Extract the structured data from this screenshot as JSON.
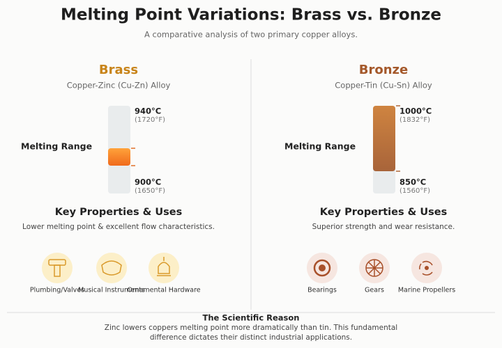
{
  "header": {
    "title": "Melting Point Variations: Brass vs. Bronze",
    "subtitle": "A comparative analysis of two primary copper alloys."
  },
  "alloys": [
    {
      "name": "Brass",
      "description": "Copper-Zinc (Cu-Zn) Alloy",
      "range_label": "Melting Range",
      "high": {
        "celsius": "940°C",
        "fahrenheit": "(1720°F)"
      },
      "low": {
        "celsius": "900°C",
        "fahrenheit": "(1650°F)"
      },
      "properties_title": "Key Properties & Uses",
      "properties_text": "Lower melting point & excellent flow characteristics.",
      "uses": [
        "Plumbing/Valves",
        "Musical Instruments",
        "Ornamental Hardware"
      ]
    },
    {
      "name": "Bronze",
      "description": "Copper-Tin (Cu-Sn) Alloy",
      "range_label": "Melting Range",
      "high": {
        "celsius": "1000°C",
        "fahrenheit": "(1832°F)"
      },
      "low": {
        "celsius": "850°C",
        "fahrenheit": "(1560°F)"
      },
      "properties_title": "Key Properties & Uses",
      "properties_text": "Superior strength and wear resistance.",
      "uses": [
        "Bearings",
        "Gears",
        "Marine Propellers"
      ]
    }
  ],
  "footer": {
    "title": "The Scientific Reason",
    "text": "Zinc lowers coppers melting point more dramatically than tin. This fundamental difference dictates their distinct industrial applications."
  }
}
